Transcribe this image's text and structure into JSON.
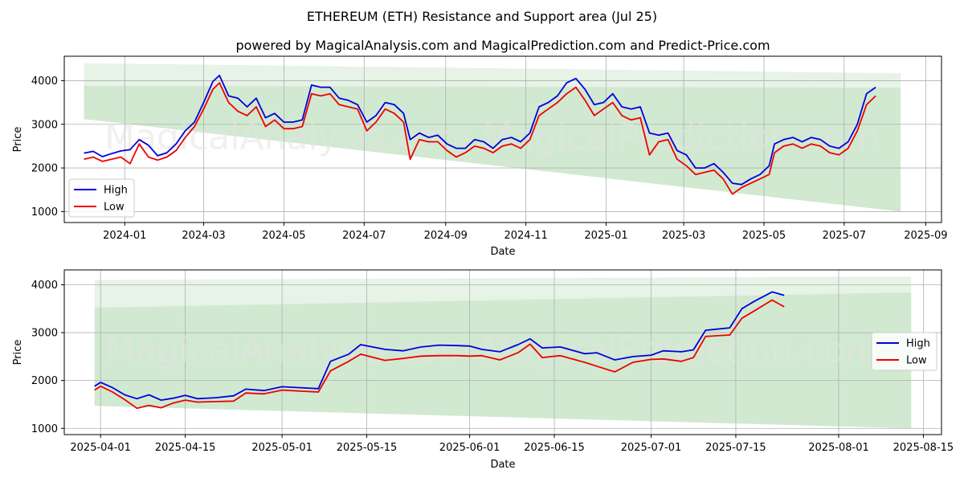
{
  "title": "ETHEREUM (ETH) Resistance and Support area (Jul 25)",
  "subtitle": "powered by MagicalAnalysis.com and MagicalPrediction.com and Predict-Price.com",
  "watermark": [
    "MagicalAnalysis.com",
    "MagicalPrediction.com"
  ],
  "colors": {
    "high": "#0000dd",
    "low": "#ee0000",
    "band": "#2e9b2e",
    "grid": "#b0b0b0"
  },
  "chart_data": [
    {
      "type": "line",
      "xlabel": "Date",
      "ylabel": "Price",
      "x_is_date": true,
      "xlim": [
        "2023-11-16",
        "2025-09-13"
      ],
      "ylim": [
        750,
        4560
      ],
      "xticks": [
        "2024-01",
        "2024-03",
        "2024-05",
        "2024-07",
        "2024-09",
        "2024-11",
        "2025-01",
        "2025-03",
        "2025-05",
        "2025-07",
        "2025-09"
      ],
      "xtick_dates": [
        "2024-01-01",
        "2024-03-01",
        "2024-05-01",
        "2024-07-01",
        "2024-09-01",
        "2024-11-01",
        "2025-01-01",
        "2025-03-01",
        "2025-05-01",
        "2025-07-01",
        "2025-09-01"
      ],
      "yticks": [
        1000,
        2000,
        3000,
        4000
      ],
      "legend": "lower-left",
      "grid": true,
      "bands": [
        {
          "start": "2023-12-01",
          "end": "2025-08-13",
          "top": [
            4400,
            4170
          ],
          "bottom": [
            3880,
            3840
          ],
          "opacity": 0.12
        },
        {
          "start": "2023-12-01",
          "end": "2025-08-13",
          "top": [
            3880,
            3840
          ],
          "bottom": [
            3120,
            1000
          ],
          "opacity": 0.22
        }
      ],
      "series": [
        {
          "name": "High",
          "x": [
            "2023-12-01",
            "2023-12-08",
            "2023-12-15",
            "2023-12-22",
            "2023-12-29",
            "2024-01-05",
            "2024-01-12",
            "2024-01-19",
            "2024-01-26",
            "2024-02-02",
            "2024-02-09",
            "2024-02-16",
            "2024-02-23",
            "2024-03-01",
            "2024-03-08",
            "2024-03-13",
            "2024-03-20",
            "2024-03-27",
            "2024-04-03",
            "2024-04-10",
            "2024-04-17",
            "2024-04-24",
            "2024-05-01",
            "2024-05-08",
            "2024-05-15",
            "2024-05-22",
            "2024-05-29",
            "2024-06-05",
            "2024-06-12",
            "2024-06-19",
            "2024-06-26",
            "2024-07-03",
            "2024-07-10",
            "2024-07-17",
            "2024-07-24",
            "2024-07-31",
            "2024-08-05",
            "2024-08-12",
            "2024-08-19",
            "2024-08-26",
            "2024-09-02",
            "2024-09-09",
            "2024-09-16",
            "2024-09-23",
            "2024-09-30",
            "2024-10-07",
            "2024-10-14",
            "2024-10-21",
            "2024-10-28",
            "2024-11-04",
            "2024-11-11",
            "2024-11-18",
            "2024-11-25",
            "2024-12-02",
            "2024-12-09",
            "2024-12-16",
            "2024-12-23",
            "2024-12-30",
            "2025-01-06",
            "2025-01-13",
            "2025-01-20",
            "2025-01-27",
            "2025-02-03",
            "2025-02-10",
            "2025-02-17",
            "2025-02-24",
            "2025-03-03",
            "2025-03-10",
            "2025-03-17",
            "2025-03-24",
            "2025-03-31",
            "2025-04-07",
            "2025-04-14",
            "2025-04-21",
            "2025-04-28",
            "2025-05-05",
            "2025-05-09",
            "2025-05-16",
            "2025-05-23",
            "2025-05-30",
            "2025-06-06",
            "2025-06-13",
            "2025-06-20",
            "2025-06-27",
            "2025-07-04",
            "2025-07-11",
            "2025-07-18",
            "2025-07-25"
          ],
          "values": [
            2340,
            2380,
            2260,
            2330,
            2390,
            2420,
            2650,
            2520,
            2280,
            2350,
            2550,
            2850,
            3050,
            3500,
            3980,
            4120,
            3650,
            3600,
            3400,
            3600,
            3150,
            3250,
            3050,
            3050,
            3100,
            3900,
            3850,
            3850,
            3600,
            3550,
            3450,
            3050,
            3200,
            3500,
            3450,
            3250,
            2650,
            2800,
            2700,
            2750,
            2550,
            2450,
            2450,
            2650,
            2600,
            2450,
            2650,
            2700,
            2600,
            2800,
            3400,
            3500,
            3650,
            3950,
            4050,
            3800,
            3450,
            3500,
            3700,
            3400,
            3350,
            3400,
            2800,
            2750,
            2800,
            2400,
            2300,
            2000,
            2000,
            2100,
            1900,
            1650,
            1620,
            1750,
            1850,
            2050,
            2550,
            2650,
            2700,
            2600,
            2700,
            2650,
            2500,
            2450,
            2600,
            3000,
            3700,
            3850
          ]
        },
        {
          "name": "Low",
          "x": [
            "2023-12-01",
            "2023-12-08",
            "2023-12-15",
            "2023-12-22",
            "2023-12-29",
            "2024-01-05",
            "2024-01-12",
            "2024-01-19",
            "2024-01-26",
            "2024-02-02",
            "2024-02-09",
            "2024-02-16",
            "2024-02-23",
            "2024-03-01",
            "2024-03-08",
            "2024-03-13",
            "2024-03-20",
            "2024-03-27",
            "2024-04-03",
            "2024-04-10",
            "2024-04-17",
            "2024-04-24",
            "2024-05-01",
            "2024-05-08",
            "2024-05-15",
            "2024-05-22",
            "2024-05-29",
            "2024-06-05",
            "2024-06-12",
            "2024-06-19",
            "2024-06-26",
            "2024-07-03",
            "2024-07-10",
            "2024-07-17",
            "2024-07-24",
            "2024-07-31",
            "2024-08-05",
            "2024-08-12",
            "2024-08-19",
            "2024-08-26",
            "2024-09-02",
            "2024-09-09",
            "2024-09-16",
            "2024-09-23",
            "2024-09-30",
            "2024-10-07",
            "2024-10-14",
            "2024-10-21",
            "2024-10-28",
            "2024-11-04",
            "2024-11-11",
            "2024-11-18",
            "2024-11-25",
            "2024-12-02",
            "2024-12-09",
            "2024-12-16",
            "2024-12-23",
            "2024-12-30",
            "2025-01-06",
            "2025-01-13",
            "2025-01-20",
            "2025-01-27",
            "2025-02-03",
            "2025-02-10",
            "2025-02-17",
            "2025-02-24",
            "2025-03-03",
            "2025-03-10",
            "2025-03-17",
            "2025-03-24",
            "2025-03-31",
            "2025-04-07",
            "2025-04-14",
            "2025-04-21",
            "2025-04-28",
            "2025-05-05",
            "2025-05-09",
            "2025-05-16",
            "2025-05-23",
            "2025-05-30",
            "2025-06-06",
            "2025-06-13",
            "2025-06-20",
            "2025-06-27",
            "2025-07-04",
            "2025-07-11",
            "2025-07-18",
            "2025-07-25"
          ],
          "values": [
            2200,
            2250,
            2150,
            2200,
            2250,
            2100,
            2550,
            2250,
            2180,
            2250,
            2400,
            2700,
            2950,
            3350,
            3800,
            3950,
            3500,
            3300,
            3200,
            3400,
            2950,
            3100,
            2900,
            2900,
            2950,
            3700,
            3650,
            3700,
            3450,
            3400,
            3350,
            2850,
            3050,
            3350,
            3250,
            3050,
            2200,
            2650,
            2600,
            2600,
            2400,
            2250,
            2350,
            2500,
            2450,
            2350,
            2500,
            2550,
            2450,
            2650,
            3200,
            3350,
            3500,
            3700,
            3850,
            3550,
            3200,
            3350,
            3500,
            3200,
            3100,
            3150,
            2300,
            2600,
            2650,
            2200,
            2050,
            1850,
            1900,
            1950,
            1750,
            1400,
            1550,
            1650,
            1750,
            1850,
            2350,
            2500,
            2550,
            2450,
            2550,
            2500,
            2350,
            2300,
            2450,
            2850,
            3450,
            3650
          ]
        }
      ]
    },
    {
      "type": "line",
      "xlabel": "Date",
      "ylabel": "Price",
      "x_is_date": true,
      "xlim": [
        "2025-03-26",
        "2025-08-18"
      ],
      "ylim": [
        870,
        4310
      ],
      "xticks": [
        "2025-04-01",
        "2025-04-15",
        "2025-05-01",
        "2025-05-15",
        "2025-06-01",
        "2025-06-15",
        "2025-07-01",
        "2025-07-15",
        "2025-08-01",
        "2025-08-15"
      ],
      "yticks": [
        1000,
        2000,
        3000,
        4000
      ],
      "legend": "center-right",
      "grid": true,
      "bands": [
        {
          "start": "2025-03-31",
          "end": "2025-08-13",
          "top": [
            4100,
            4170
          ],
          "bottom": [
            3520,
            3840
          ],
          "opacity": 0.12
        },
        {
          "start": "2025-03-31",
          "end": "2025-08-13",
          "top": [
            3520,
            3840
          ],
          "bottom": [
            1470,
            1000
          ],
          "opacity": 0.22
        }
      ],
      "series": [
        {
          "name": "High",
          "x": [
            "2025-03-31",
            "2025-04-01",
            "2025-04-03",
            "2025-04-05",
            "2025-04-07",
            "2025-04-09",
            "2025-04-11",
            "2025-04-13",
            "2025-04-15",
            "2025-04-17",
            "2025-04-20",
            "2025-04-23",
            "2025-04-25",
            "2025-04-28",
            "2025-05-01",
            "2025-05-04",
            "2025-05-07",
            "2025-05-09",
            "2025-05-12",
            "2025-05-14",
            "2025-05-18",
            "2025-05-21",
            "2025-05-24",
            "2025-05-27",
            "2025-05-30",
            "2025-06-01",
            "2025-06-03",
            "2025-06-06",
            "2025-06-09",
            "2025-06-11",
            "2025-06-13",
            "2025-06-16",
            "2025-06-20",
            "2025-06-22",
            "2025-06-25",
            "2025-06-28",
            "2025-07-01",
            "2025-07-03",
            "2025-07-06",
            "2025-07-08",
            "2025-07-10",
            "2025-07-14",
            "2025-07-16",
            "2025-07-18",
            "2025-07-21",
            "2025-07-23"
          ],
          "values": [
            1880,
            1960,
            1850,
            1700,
            1620,
            1700,
            1590,
            1630,
            1690,
            1620,
            1640,
            1680,
            1820,
            1790,
            1870,
            1850,
            1830,
            2400,
            2550,
            2750,
            2650,
            2620,
            2700,
            2740,
            2730,
            2720,
            2650,
            2600,
            2750,
            2870,
            2680,
            2700,
            2560,
            2580,
            2430,
            2500,
            2530,
            2620,
            2600,
            2640,
            3050,
            3100,
            3500,
            3650,
            3850,
            3780
          ]
        },
        {
          "name": "Low",
          "x": [
            "2025-03-31",
            "2025-04-01",
            "2025-04-03",
            "2025-04-05",
            "2025-04-07",
            "2025-04-09",
            "2025-04-11",
            "2025-04-13",
            "2025-04-15",
            "2025-04-17",
            "2025-04-20",
            "2025-04-23",
            "2025-04-25",
            "2025-04-28",
            "2025-05-01",
            "2025-05-04",
            "2025-05-07",
            "2025-05-09",
            "2025-05-12",
            "2025-05-14",
            "2025-05-18",
            "2025-05-21",
            "2025-05-24",
            "2025-05-27",
            "2025-05-30",
            "2025-06-01",
            "2025-06-03",
            "2025-06-06",
            "2025-06-09",
            "2025-06-11",
            "2025-06-13",
            "2025-06-16",
            "2025-06-20",
            "2025-06-22",
            "2025-06-25",
            "2025-06-28",
            "2025-07-01",
            "2025-07-03",
            "2025-07-06",
            "2025-07-08",
            "2025-07-10",
            "2025-07-14",
            "2025-07-16",
            "2025-07-18",
            "2025-07-21",
            "2025-07-23"
          ],
          "values": [
            1800,
            1880,
            1760,
            1600,
            1420,
            1480,
            1430,
            1530,
            1590,
            1550,
            1560,
            1570,
            1740,
            1720,
            1800,
            1780,
            1760,
            2200,
            2400,
            2550,
            2420,
            2460,
            2510,
            2520,
            2520,
            2510,
            2520,
            2430,
            2580,
            2760,
            2480,
            2520,
            2380,
            2300,
            2180,
            2380,
            2440,
            2450,
            2400,
            2480,
            2920,
            2950,
            3300,
            3450,
            3680,
            3540
          ]
        }
      ]
    }
  ]
}
